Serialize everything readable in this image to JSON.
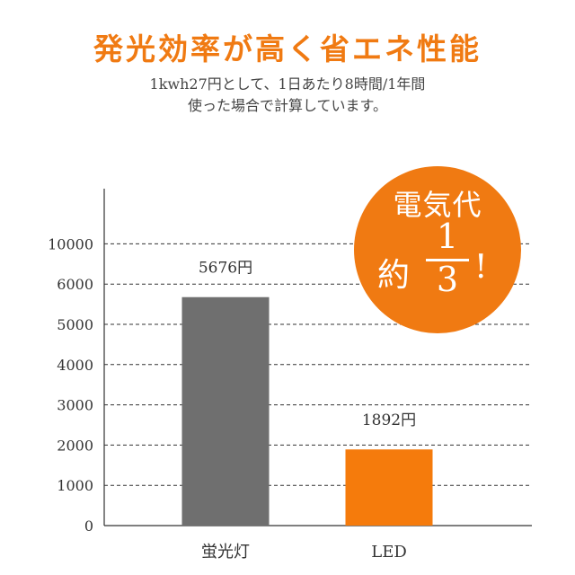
{
  "header": {
    "headline": "発光効率が高く省エネ性能",
    "sub_line1": "1kwh27円として、1日あたり8時間/1年間",
    "sub_line2": "使った場合で計算しています。"
  },
  "badge": {
    "top_text": "電気代",
    "approx": "約",
    "numerator": "1",
    "denominator": "3",
    "exclaim": "!"
  },
  "colors": {
    "accent": "#f07a12",
    "bar_fluorescent": "#6f6f6f",
    "bar_led": "#f57b0c",
    "grid": "#333333"
  },
  "chart_data": {
    "type": "bar",
    "categories": [
      "蛍光灯",
      "LED"
    ],
    "values": [
      5676,
      1892
    ],
    "bar_colors": [
      "#6f6f6f",
      "#f57b0c"
    ],
    "data_labels": [
      "5676円",
      "1892円"
    ],
    "y_ticks": [
      0,
      1000,
      2000,
      3000,
      4000,
      5000,
      6000,
      10000
    ],
    "y_axis_note": "Non-linear axis: ticks 0–6000 are evenly spaced at 1000 each, the top tick reads 10000 at the next position.",
    "grid": true,
    "title": "",
    "xlabel": "",
    "ylabel": ""
  }
}
